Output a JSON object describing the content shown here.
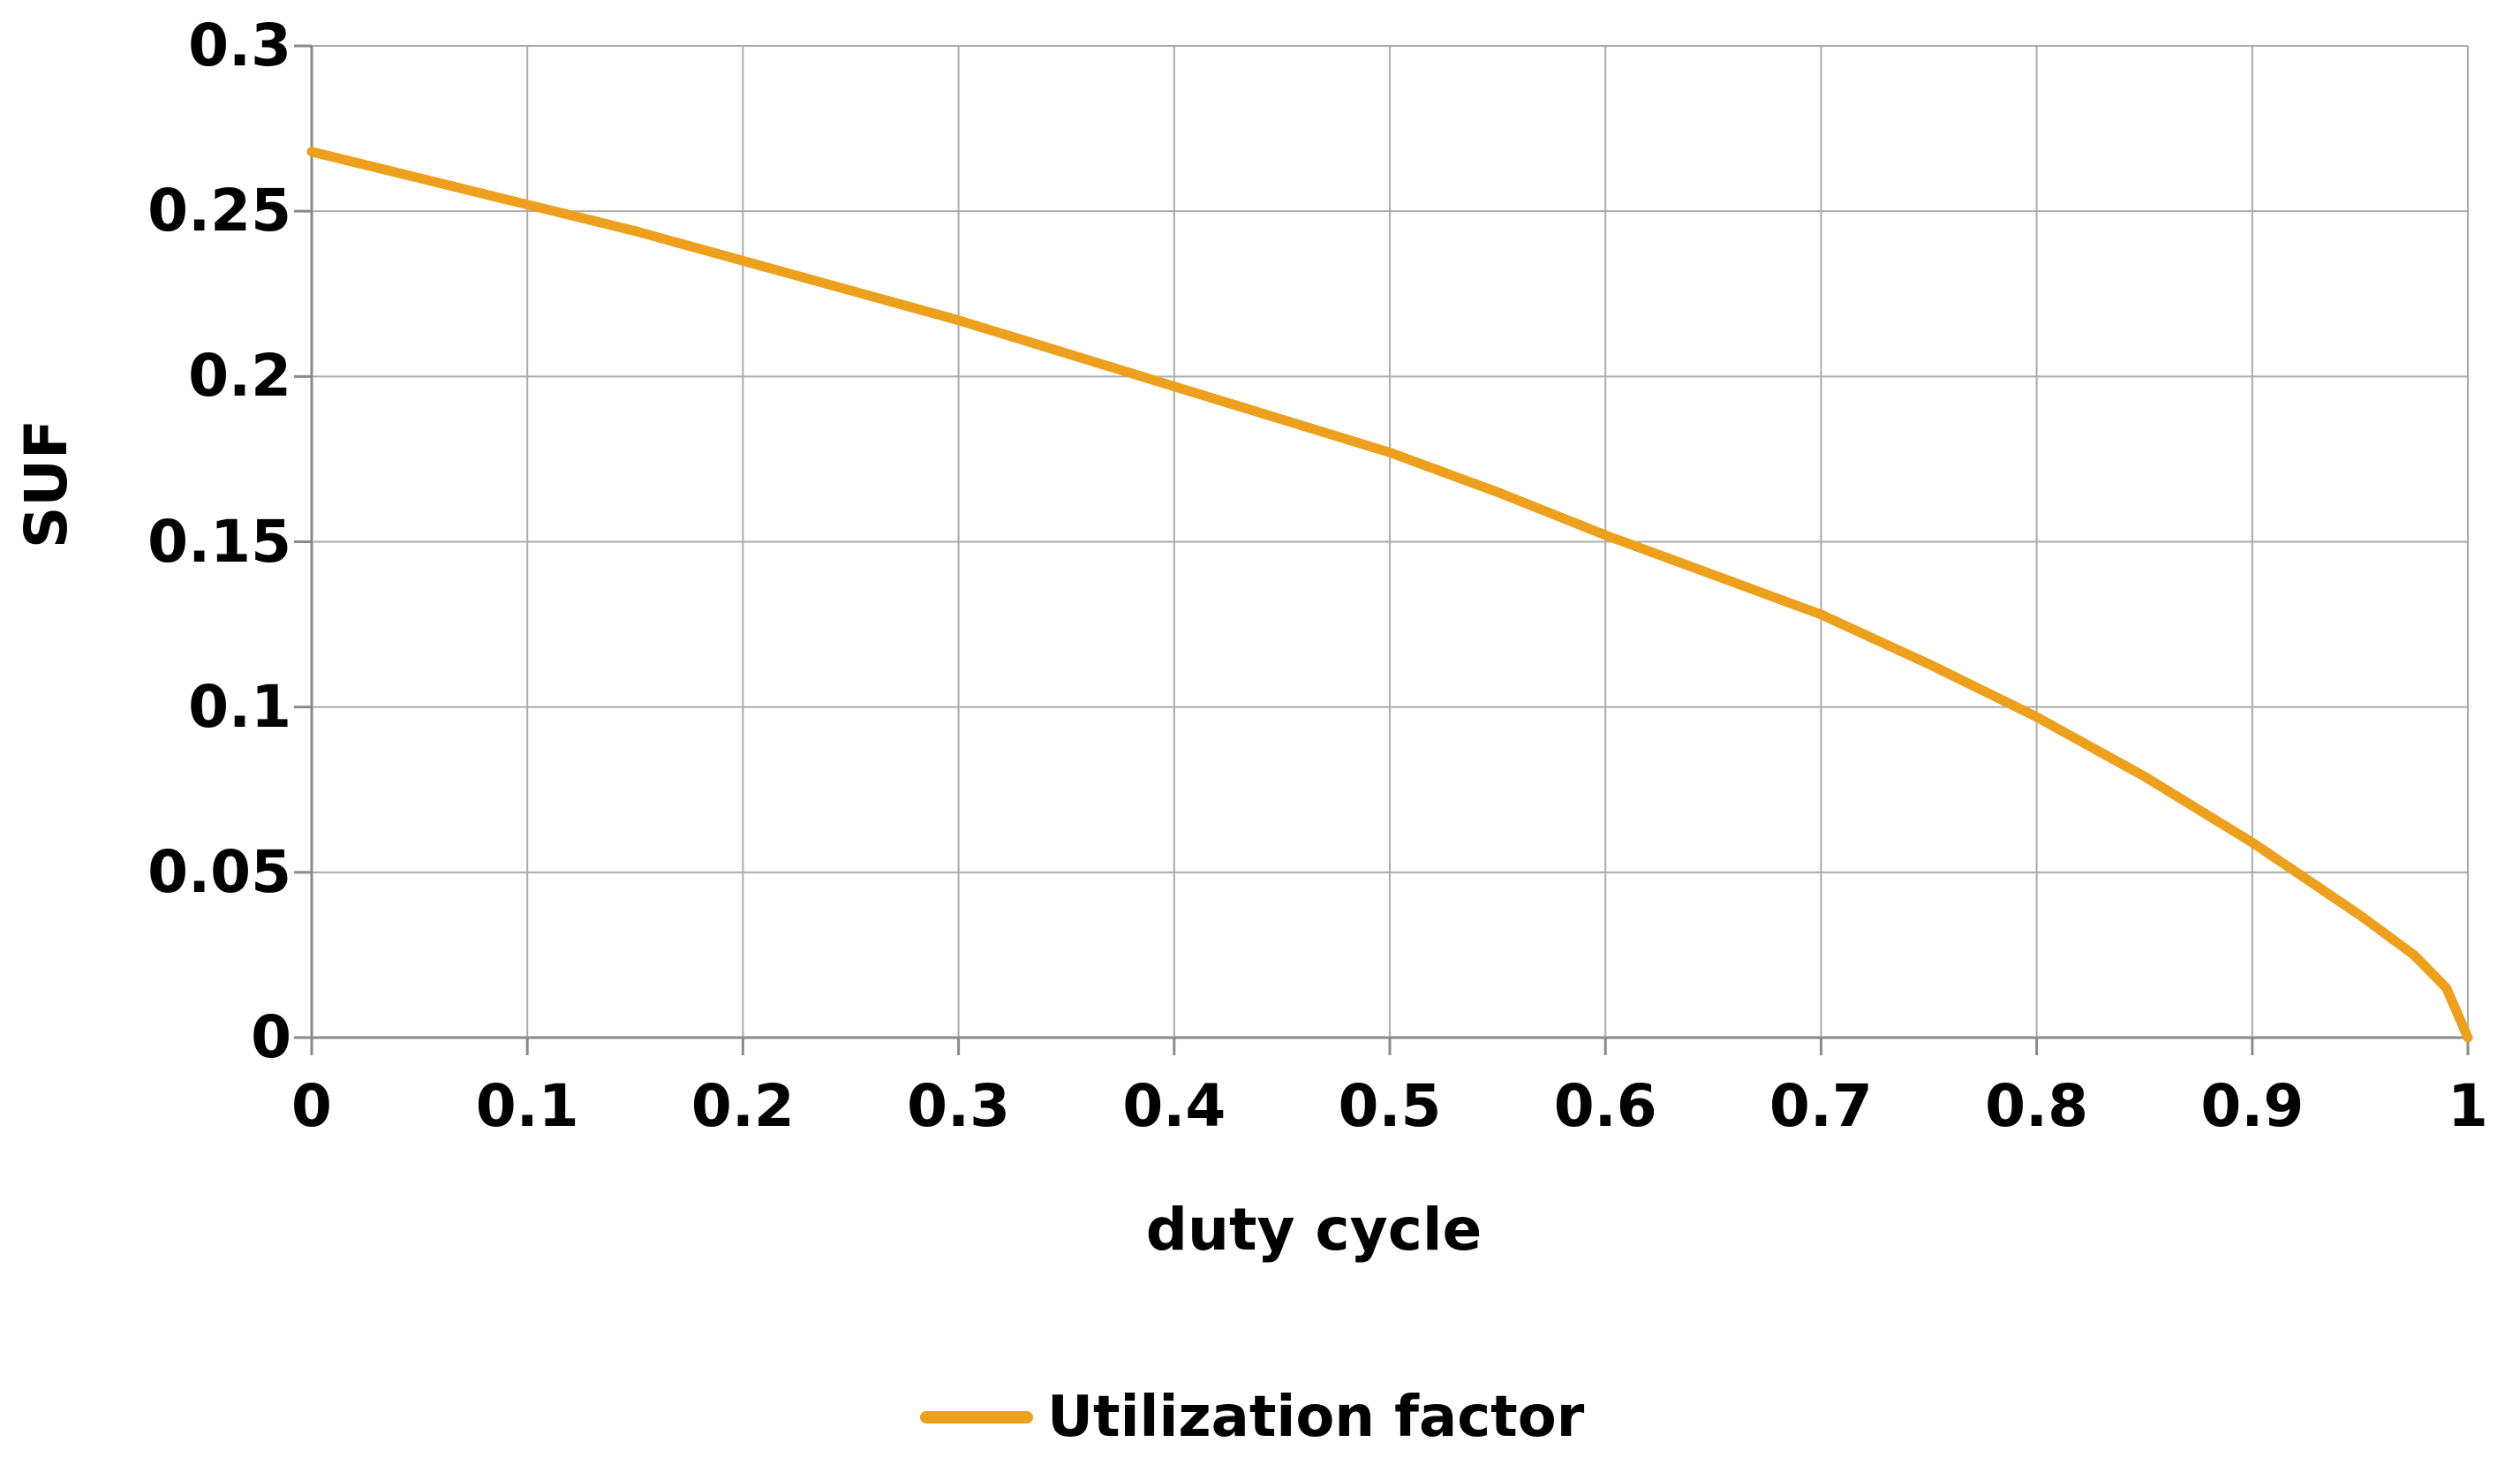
{
  "chart_data": {
    "type": "line",
    "title": "",
    "xlabel": "duty cycle",
    "ylabel": "SUF",
    "xlim": [
      0,
      1
    ],
    "ylim": [
      0,
      0.3
    ],
    "grid": true,
    "legend_position": "bottom-center",
    "x_ticks": [
      {
        "v": 0.0,
        "label": "0"
      },
      {
        "v": 0.1,
        "label": "0.1"
      },
      {
        "v": 0.2,
        "label": "0.2"
      },
      {
        "v": 0.3,
        "label": "0.3"
      },
      {
        "v": 0.4,
        "label": "0.4"
      },
      {
        "v": 0.5,
        "label": "0.5"
      },
      {
        "v": 0.6,
        "label": "0.6"
      },
      {
        "v": 0.7,
        "label": "0.7"
      },
      {
        "v": 0.8,
        "label": "0.8"
      },
      {
        "v": 0.9,
        "label": "0.9"
      },
      {
        "v": 1.0,
        "label": "1"
      }
    ],
    "y_ticks": [
      {
        "v": 0.0,
        "label": "0"
      },
      {
        "v": 0.05,
        "label": "0.05"
      },
      {
        "v": 0.1,
        "label": "0.1"
      },
      {
        "v": 0.15,
        "label": "0.15"
      },
      {
        "v": 0.2,
        "label": "0.2"
      },
      {
        "v": 0.25,
        "label": "0.25"
      },
      {
        "v": 0.3,
        "label": "0.3"
      }
    ],
    "series": [
      {
        "name": "Utilization factor",
        "color": "#EDA01D",
        "points": [
          [
            0.0,
            0.268
          ],
          [
            0.05,
            0.26
          ],
          [
            0.1,
            0.252
          ],
          [
            0.15,
            0.244
          ],
          [
            0.2,
            0.235
          ],
          [
            0.25,
            0.226
          ],
          [
            0.3,
            0.217
          ],
          [
            0.35,
            0.207
          ],
          [
            0.4,
            0.197
          ],
          [
            0.45,
            0.187
          ],
          [
            0.5,
            0.177
          ],
          [
            0.55,
            0.165
          ],
          [
            0.6,
            0.152
          ],
          [
            0.65,
            0.14
          ],
          [
            0.7,
            0.128
          ],
          [
            0.75,
            0.113
          ],
          [
            0.8,
            0.097
          ],
          [
            0.85,
            0.079
          ],
          [
            0.9,
            0.059
          ],
          [
            0.95,
            0.037
          ],
          [
            0.975,
            0.025
          ],
          [
            0.99,
            0.015
          ],
          [
            1.0,
            0.0
          ]
        ]
      }
    ]
  },
  "legend": {
    "label": "Utilization factor"
  },
  "colors": {
    "series": "#EDA01D",
    "gridline": "#ABABAB",
    "axis": "#8A8A8A",
    "text": "#000000",
    "background": "#FFFFFF"
  }
}
